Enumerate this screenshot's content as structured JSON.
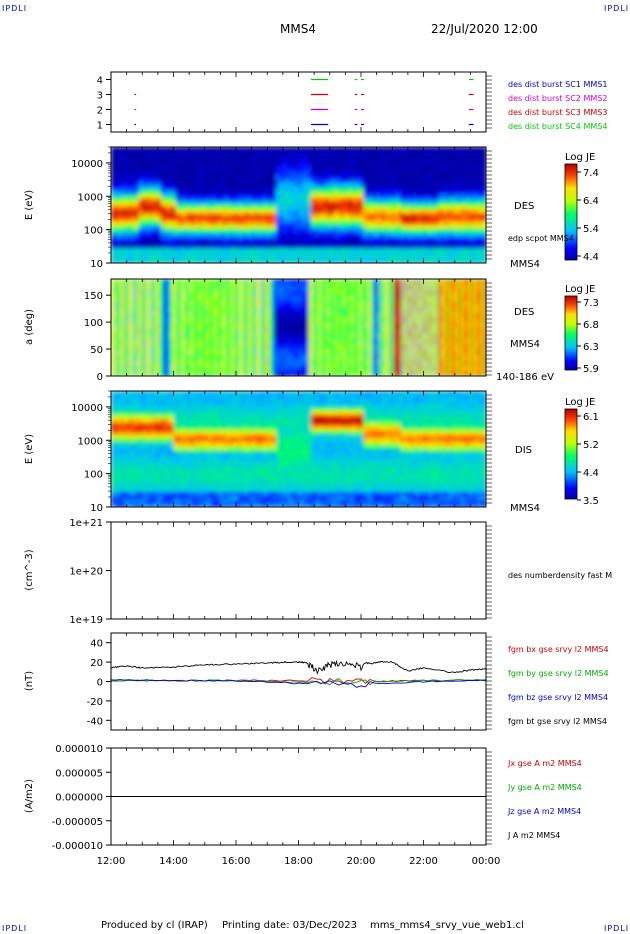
{
  "header": {
    "corner_label": "IPDLI",
    "spacecraft": "MMS4",
    "date_time": "22/Jul/2020 12:00"
  },
  "footer": {
    "produced_by": "Produced by cl (IRAP)",
    "printing_date": "Printing date: 03/Dec/2023",
    "filename": "mms_mms4_srvy_vue_web1.cl"
  },
  "time_axis": {
    "ticks": [
      "12:00",
      "14:00",
      "16:00",
      "18:00",
      "20:00",
      "22:00",
      "00:00"
    ],
    "range_hours": [
      12,
      24
    ]
  },
  "chart_data": [
    {
      "type": "scatter",
      "panel": "burst",
      "yticks": [
        "1",
        "2",
        "3",
        "4"
      ],
      "ylim": [
        0.5,
        4.5
      ],
      "series": [
        {
          "name": "des dist burst SC1 MMS1",
          "color": "#0000cc",
          "y": 1,
          "intervals": [
            [
              12.75,
              12.8
            ],
            [
              18.4,
              18.95
            ],
            [
              19.8,
              19.88
            ],
            [
              20.0,
              20.1
            ],
            [
              23.45,
              23.6
            ]
          ]
        },
        {
          "name": "des dist burst SC2 MMS2",
          "color": "#cc00cc",
          "y": 2,
          "intervals": [
            [
              12.75,
              12.8
            ],
            [
              18.4,
              18.95
            ],
            [
              19.8,
              19.88
            ],
            [
              20.0,
              20.1
            ],
            [
              23.45,
              23.6
            ]
          ]
        },
        {
          "name": "des dist burst SC3 MMS3",
          "color": "#cc0000",
          "y": 3,
          "intervals": [
            [
              12.75,
              12.8
            ],
            [
              18.4,
              18.95
            ],
            [
              19.8,
              19.88
            ],
            [
              20.0,
              20.1
            ],
            [
              23.45,
              23.6
            ]
          ]
        },
        {
          "name": "des dist burst SC4 MMS4",
          "color": "#00cc00",
          "y": 4,
          "intervals": [
            [
              18.4,
              18.95
            ],
            [
              19.8,
              19.88
            ],
            [
              20.0,
              20.1
            ],
            [
              23.45,
              23.6
            ]
          ]
        }
      ]
    },
    {
      "type": "heatmap",
      "panel": "des-energy",
      "ylabel": "E (eV)",
      "yscale": "log",
      "ylim": [
        10,
        30000
      ],
      "yticks": [
        "10",
        "100",
        "1000",
        "10000"
      ],
      "label": "DES",
      "overlay_label": "edp scpot MMS4",
      "right_label": "MMS4",
      "colorbar": {
        "title": "Log JE",
        "ticks": [
          "7.4",
          "6.4",
          "5.4",
          "4.4"
        ],
        "range": [
          4.4,
          7.4
        ]
      }
    },
    {
      "type": "heatmap",
      "panel": "des-pitch",
      "ylabel": "a (deg)",
      "ylim": [
        0,
        180
      ],
      "yticks": [
        "0",
        "50",
        "100",
        "150"
      ],
      "label": "DES",
      "right_label": "MMS4",
      "bottom_right_label": "140-186 eV",
      "colorbar": {
        "title": "Log JE",
        "ticks": [
          "7.3",
          "6.8",
          "6.3",
          "5.9"
        ],
        "range": [
          5.9,
          7.3
        ]
      }
    },
    {
      "type": "heatmap",
      "panel": "dis-energy",
      "ylabel": "E (eV)",
      "yscale": "log",
      "ylim": [
        10,
        30000
      ],
      "yticks": [
        "10",
        "100",
        "1000",
        "10000"
      ],
      "label": "DIS",
      "right_label": "MMS4",
      "colorbar": {
        "title": "Log JE",
        "ticks": [
          "6.1",
          "5.2",
          "4.4",
          "3.5"
        ],
        "range": [
          3.5,
          6.1
        ]
      }
    },
    {
      "type": "line",
      "panel": "density",
      "ylabel": "(cm^-3)",
      "yscale": "log",
      "ylim": [
        1e+19,
        1e+21
      ],
      "yticks": [
        "1e+21",
        "1e+20",
        "1e+19"
      ],
      "legend": [
        "des numberdensity fast M"
      ],
      "series": []
    },
    {
      "type": "line",
      "panel": "magnetic-field",
      "ylabel": "(nT)",
      "ylim": [
        -50,
        50
      ],
      "yticks": [
        "40",
        "20",
        "0",
        "-20",
        "-40"
      ],
      "series": [
        {
          "name": "fgm bx gse srvy l2 MMS4",
          "color": "#cc0000",
          "x": [
            12,
            14,
            16,
            18,
            20,
            22,
            24
          ],
          "values": [
            1,
            1,
            1,
            1,
            0,
            1,
            1
          ]
        },
        {
          "name": "fgm by gse srvy l2 MMS4",
          "color": "#00aa00",
          "x": [
            12,
            14,
            16,
            18,
            20,
            22,
            24
          ],
          "values": [
            1,
            1,
            1,
            -1,
            0,
            1,
            2
          ]
        },
        {
          "name": "fgm bz gse srvy l2 MMS4",
          "color": "#0000cc",
          "x": [
            12,
            14,
            16,
            18,
            20,
            22,
            24
          ],
          "values": [
            2,
            1,
            1,
            -2,
            -3,
            0,
            1
          ]
        },
        {
          "name": "fgm bt gse srvy l2 MMS4",
          "color": "#000000",
          "x": [
            12,
            12.5,
            13,
            14,
            15,
            16,
            17,
            17.5,
            18,
            18.3,
            18.6,
            19,
            19.5,
            20,
            20.5,
            21,
            21.5,
            22,
            23,
            23.5,
            24
          ],
          "values": [
            14,
            16,
            14,
            15,
            17,
            18,
            19,
            20,
            20,
            19,
            10,
            17,
            19,
            15,
            20,
            20,
            11,
            14,
            9,
            12,
            13
          ]
        }
      ]
    },
    {
      "type": "line",
      "panel": "current",
      "ylabel": "(A/m2)",
      "ylim": [
        -1e-05,
        1e-05
      ],
      "yticks": [
        "0.000010",
        "0.000005",
        "0.000000",
        "-0.000005",
        "-0.000010"
      ],
      "series": [
        {
          "name": "Jx gse A m2 MMS4",
          "color": "#cc0000",
          "x": [
            12,
            24
          ],
          "values": [
            0,
            0
          ]
        },
        {
          "name": "Jy gse A m2 MMS4",
          "color": "#00aa00",
          "x": [
            12,
            24
          ],
          "values": [
            0,
            0
          ]
        },
        {
          "name": "Jz gse A m2 MMS4",
          "color": "#0000cc",
          "x": [
            12,
            24
          ],
          "values": [
            0,
            0
          ]
        },
        {
          "name": "J A m2 MMS4",
          "color": "#000000",
          "x": [
            12,
            24
          ],
          "values": [
            0,
            0
          ]
        }
      ]
    }
  ]
}
